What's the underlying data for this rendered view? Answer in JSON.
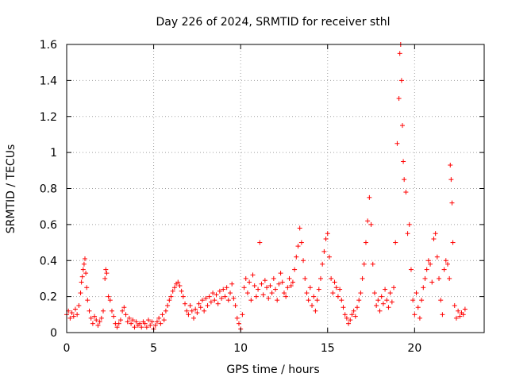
{
  "chart_data": {
    "type": "scatter",
    "title": "Day 226 of 2024, SRMTID for receiver sthl",
    "xlabel": "GPS time / hours",
    "ylabel": "SRMTID / TECUs",
    "xlim": [
      0,
      24
    ],
    "ylim": [
      0,
      1.6
    ],
    "xticks": [
      0,
      5,
      10,
      15,
      20
    ],
    "xtick_labels": [
      "0",
      "5",
      "10",
      "15",
      "20"
    ],
    "yticks": [
      0,
      0.2,
      0.4,
      0.6,
      0.8,
      1.0,
      1.2,
      1.4,
      1.6
    ],
    "ytick_labels": [
      "0",
      "0.2",
      "0.4",
      "0.6",
      "0.8",
      "1",
      "1.2",
      "1.4",
      "1.6"
    ],
    "grid": true,
    "marker": "+",
    "color": "#ff0000",
    "series": [
      {
        "name": "SRMTID",
        "points": [
          [
            0.0,
            0.1
          ],
          [
            0.1,
            0.12
          ],
          [
            0.2,
            0.08
          ],
          [
            0.3,
            0.11
          ],
          [
            0.4,
            0.09
          ],
          [
            0.5,
            0.13
          ],
          [
            0.6,
            0.1
          ],
          [
            0.7,
            0.15
          ],
          [
            0.8,
            0.22
          ],
          [
            0.85,
            0.28
          ],
          [
            0.9,
            0.31
          ],
          [
            0.95,
            0.35
          ],
          [
            1.0,
            0.38
          ],
          [
            1.05,
            0.41
          ],
          [
            1.1,
            0.33
          ],
          [
            1.15,
            0.25
          ],
          [
            1.2,
            0.18
          ],
          [
            1.3,
            0.12
          ],
          [
            1.4,
            0.08
          ],
          [
            1.5,
            0.05
          ],
          [
            1.6,
            0.09
          ],
          [
            1.7,
            0.07
          ],
          [
            1.8,
            0.04
          ],
          [
            1.9,
            0.06
          ],
          [
            2.0,
            0.08
          ],
          [
            2.1,
            0.12
          ],
          [
            2.2,
            0.3
          ],
          [
            2.25,
            0.35
          ],
          [
            2.3,
            0.33
          ],
          [
            2.4,
            0.2
          ],
          [
            2.5,
            0.18
          ],
          [
            2.6,
            0.12
          ],
          [
            2.7,
            0.09
          ],
          [
            2.8,
            0.05
          ],
          [
            2.9,
            0.03
          ],
          [
            3.0,
            0.05
          ],
          [
            3.1,
            0.07
          ],
          [
            3.2,
            0.12
          ],
          [
            3.3,
            0.14
          ],
          [
            3.4,
            0.1
          ],
          [
            3.5,
            0.06
          ],
          [
            3.6,
            0.08
          ],
          [
            3.7,
            0.05
          ],
          [
            3.8,
            0.07
          ],
          [
            3.9,
            0.03
          ],
          [
            4.0,
            0.06
          ],
          [
            4.1,
            0.04
          ],
          [
            4.2,
            0.05
          ],
          [
            4.3,
            0.03
          ],
          [
            4.4,
            0.06
          ],
          [
            4.5,
            0.05
          ],
          [
            4.6,
            0.03
          ],
          [
            4.7,
            0.07
          ],
          [
            4.8,
            0.04
          ],
          [
            4.9,
            0.06
          ],
          [
            5.0,
            0.02
          ],
          [
            5.1,
            0.04
          ],
          [
            5.2,
            0.06
          ],
          [
            5.3,
            0.08
          ],
          [
            5.4,
            0.05
          ],
          [
            5.5,
            0.1
          ],
          [
            5.6,
            0.07
          ],
          [
            5.7,
            0.12
          ],
          [
            5.8,
            0.15
          ],
          [
            5.9,
            0.18
          ],
          [
            6.0,
            0.2
          ],
          [
            6.1,
            0.23
          ],
          [
            6.2,
            0.25
          ],
          [
            6.3,
            0.27
          ],
          [
            6.4,
            0.28
          ],
          [
            6.5,
            0.26
          ],
          [
            6.6,
            0.23
          ],
          [
            6.7,
            0.2
          ],
          [
            6.8,
            0.16
          ],
          [
            6.9,
            0.12
          ],
          [
            7.0,
            0.1
          ],
          [
            7.1,
            0.15
          ],
          [
            7.2,
            0.12
          ],
          [
            7.3,
            0.08
          ],
          [
            7.4,
            0.13
          ],
          [
            7.5,
            0.11
          ],
          [
            7.6,
            0.16
          ],
          [
            7.7,
            0.14
          ],
          [
            7.8,
            0.18
          ],
          [
            7.9,
            0.12
          ],
          [
            8.0,
            0.19
          ],
          [
            8.1,
            0.15
          ],
          [
            8.2,
            0.2
          ],
          [
            8.3,
            0.17
          ],
          [
            8.4,
            0.22
          ],
          [
            8.5,
            0.18
          ],
          [
            8.6,
            0.21
          ],
          [
            8.7,
            0.16
          ],
          [
            8.8,
            0.23
          ],
          [
            8.9,
            0.19
          ],
          [
            9.0,
            0.24
          ],
          [
            9.1,
            0.2
          ],
          [
            9.2,
            0.25
          ],
          [
            9.3,
            0.18
          ],
          [
            9.4,
            0.22
          ],
          [
            9.5,
            0.27
          ],
          [
            9.6,
            0.19
          ],
          [
            9.7,
            0.15
          ],
          [
            9.8,
            0.08
          ],
          [
            9.9,
            0.05
          ],
          [
            10.0,
            0.02
          ],
          [
            10.1,
            0.1
          ],
          [
            10.2,
            0.25
          ],
          [
            10.3,
            0.3
          ],
          [
            10.4,
            0.22
          ],
          [
            10.5,
            0.28
          ],
          [
            10.6,
            0.18
          ],
          [
            10.7,
            0.32
          ],
          [
            10.8,
            0.26
          ],
          [
            10.9,
            0.2
          ],
          [
            11.0,
            0.24
          ],
          [
            11.1,
            0.5
          ],
          [
            11.2,
            0.27
          ],
          [
            11.3,
            0.21
          ],
          [
            11.4,
            0.29
          ],
          [
            11.5,
            0.25
          ],
          [
            11.6,
            0.19
          ],
          [
            11.7,
            0.26
          ],
          [
            11.8,
            0.22
          ],
          [
            11.9,
            0.3
          ],
          [
            12.0,
            0.24
          ],
          [
            12.1,
            0.18
          ],
          [
            12.2,
            0.27
          ],
          [
            12.3,
            0.33
          ],
          [
            12.4,
            0.28
          ],
          [
            12.5,
            0.22
          ],
          [
            12.6,
            0.2
          ],
          [
            12.7,
            0.25
          ],
          [
            12.8,
            0.3
          ],
          [
            12.9,
            0.26
          ],
          [
            13.0,
            0.28
          ],
          [
            13.1,
            0.35
          ],
          [
            13.2,
            0.42
          ],
          [
            13.3,
            0.48
          ],
          [
            13.4,
            0.58
          ],
          [
            13.5,
            0.5
          ],
          [
            13.6,
            0.4
          ],
          [
            13.7,
            0.3
          ],
          [
            13.8,
            0.22
          ],
          [
            13.9,
            0.18
          ],
          [
            14.0,
            0.25
          ],
          [
            14.1,
            0.15
          ],
          [
            14.2,
            0.2
          ],
          [
            14.3,
            0.12
          ],
          [
            14.4,
            0.18
          ],
          [
            14.5,
            0.24
          ],
          [
            14.6,
            0.3
          ],
          [
            14.7,
            0.38
          ],
          [
            14.8,
            0.45
          ],
          [
            14.9,
            0.52
          ],
          [
            15.0,
            0.55
          ],
          [
            15.1,
            0.42
          ],
          [
            15.2,
            0.3
          ],
          [
            15.3,
            0.22
          ],
          [
            15.4,
            0.28
          ],
          [
            15.5,
            0.25
          ],
          [
            15.6,
            0.2
          ],
          [
            15.7,
            0.24
          ],
          [
            15.8,
            0.18
          ],
          [
            15.9,
            0.14
          ],
          [
            16.0,
            0.1
          ],
          [
            16.1,
            0.08
          ],
          [
            16.2,
            0.05
          ],
          [
            16.3,
            0.07
          ],
          [
            16.4,
            0.1
          ],
          [
            16.5,
            0.12
          ],
          [
            16.6,
            0.09
          ],
          [
            16.7,
            0.14
          ],
          [
            16.8,
            0.18
          ],
          [
            16.9,
            0.22
          ],
          [
            17.0,
            0.3
          ],
          [
            17.1,
            0.38
          ],
          [
            17.2,
            0.5
          ],
          [
            17.3,
            0.62
          ],
          [
            17.4,
            0.75
          ],
          [
            17.5,
            0.6
          ],
          [
            17.6,
            0.38
          ],
          [
            17.7,
            0.22
          ],
          [
            17.8,
            0.15
          ],
          [
            17.9,
            0.18
          ],
          [
            18.0,
            0.12
          ],
          [
            18.1,
            0.2
          ],
          [
            18.2,
            0.16
          ],
          [
            18.3,
            0.24
          ],
          [
            18.4,
            0.18
          ],
          [
            18.5,
            0.14
          ],
          [
            18.6,
            0.22
          ],
          [
            18.7,
            0.17
          ],
          [
            18.8,
            0.25
          ],
          [
            18.9,
            0.5
          ],
          [
            19.0,
            1.05
          ],
          [
            19.1,
            1.3
          ],
          [
            19.15,
            1.55
          ],
          [
            19.2,
            1.6
          ],
          [
            19.25,
            1.4
          ],
          [
            19.3,
            1.15
          ],
          [
            19.35,
            0.95
          ],
          [
            19.4,
            0.85
          ],
          [
            19.5,
            0.78
          ],
          [
            19.6,
            0.55
          ],
          [
            19.7,
            0.6
          ],
          [
            19.8,
            0.35
          ],
          [
            19.9,
            0.18
          ],
          [
            20.0,
            0.1
          ],
          [
            20.1,
            0.22
          ],
          [
            20.2,
            0.14
          ],
          [
            20.3,
            0.08
          ],
          [
            20.4,
            0.18
          ],
          [
            20.5,
            0.25
          ],
          [
            20.6,
            0.3
          ],
          [
            20.7,
            0.35
          ],
          [
            20.8,
            0.4
          ],
          [
            20.9,
            0.38
          ],
          [
            21.0,
            0.28
          ],
          [
            21.1,
            0.52
          ],
          [
            21.2,
            0.55
          ],
          [
            21.3,
            0.42
          ],
          [
            21.4,
            0.3
          ],
          [
            21.5,
            0.18
          ],
          [
            21.6,
            0.1
          ],
          [
            21.7,
            0.35
          ],
          [
            21.8,
            0.4
          ],
          [
            21.9,
            0.38
          ],
          [
            22.0,
            0.3
          ],
          [
            22.05,
            0.93
          ],
          [
            22.1,
            0.85
          ],
          [
            22.15,
            0.72
          ],
          [
            22.2,
            0.5
          ],
          [
            22.3,
            0.15
          ],
          [
            22.4,
            0.08
          ],
          [
            22.5,
            0.12
          ],
          [
            22.6,
            0.09
          ],
          [
            22.7,
            0.11
          ],
          [
            22.8,
            0.1
          ],
          [
            22.9,
            0.13
          ]
        ]
      }
    ]
  }
}
